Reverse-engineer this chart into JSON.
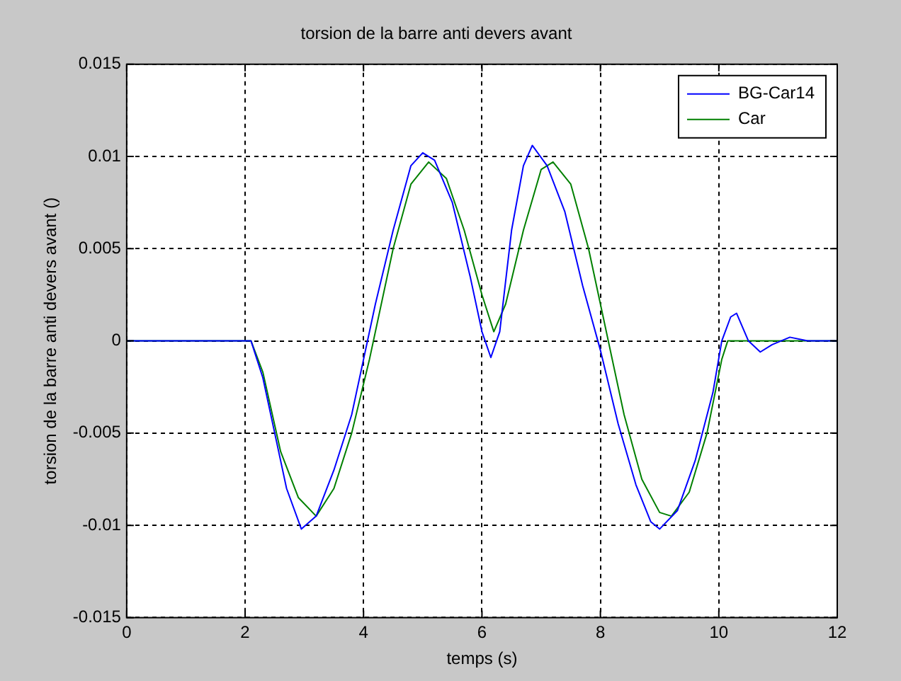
{
  "chart_data": {
    "type": "line",
    "title": "torsion de la barre anti devers avant",
    "xlabel": "temps (s)",
    "ylabel": "torsion de la barre anti devers avant ()",
    "xlim": [
      0,
      12
    ],
    "xticks": [
      0,
      2,
      4,
      6,
      8,
      10,
      12
    ],
    "ylim": [
      -0.015,
      0.015
    ],
    "yticks": [
      -0.015,
      -0.01,
      -0.005,
      0,
      0.005,
      0.01,
      0.015
    ],
    "grid": true,
    "legend": "top right",
    "line_style": "solid",
    "marker": "none",
    "series": [
      {
        "name": "BG-Car14",
        "color": "#0000ff",
        "x": [
          0,
          2,
          2.1,
          2.3,
          2.5,
          2.7,
          2.95,
          3.2,
          3.5,
          3.8,
          4.0,
          4.2,
          4.5,
          4.8,
          5.0,
          5.2,
          5.5,
          5.8,
          6.0,
          6.15,
          6.3,
          6.5,
          6.7,
          6.85,
          7.1,
          7.4,
          7.7,
          8.0,
          8.3,
          8.6,
          8.85,
          9.0,
          9.3,
          9.6,
          9.9,
          10.05,
          10.2,
          10.3,
          10.5,
          10.7,
          10.9,
          11.2,
          11.5,
          12
        ],
        "values": [
          0,
          0,
          0,
          -0.002,
          -0.005,
          -0.008,
          -0.0102,
          -0.0095,
          -0.007,
          -0.004,
          -0.001,
          0.002,
          0.006,
          0.0095,
          0.0102,
          0.0098,
          0.0075,
          0.0035,
          0.0005,
          -0.0009,
          0.0005,
          0.006,
          0.0095,
          0.0106,
          0.0095,
          0.007,
          0.003,
          -0.0005,
          -0.0045,
          -0.0078,
          -0.0098,
          -0.0102,
          -0.0092,
          -0.0065,
          -0.0028,
          0,
          0.0013,
          0.0015,
          0,
          -0.0006,
          -0.0002,
          0.0002,
          0,
          0
        ]
      },
      {
        "name": "Car",
        "color": "#008000",
        "x": [
          0,
          2.1,
          2.3,
          2.6,
          2.9,
          3.2,
          3.5,
          3.8,
          4.1,
          4.5,
          4.8,
          5.1,
          5.4,
          5.7,
          6.0,
          6.2,
          6.4,
          6.7,
          7.0,
          7.2,
          7.5,
          7.8,
          8.1,
          8.4,
          8.7,
          9.0,
          9.2,
          9.5,
          9.8,
          10.05,
          10.15,
          12
        ],
        "values": [
          0,
          0,
          -0.0017,
          -0.006,
          -0.0085,
          -0.0095,
          -0.008,
          -0.005,
          -0.001,
          0.005,
          0.0085,
          0.0097,
          0.0088,
          0.006,
          0.0025,
          0.0005,
          0.002,
          0.006,
          0.0093,
          0.0097,
          0.0085,
          0.005,
          0.0005,
          -0.004,
          -0.0075,
          -0.0093,
          -0.0095,
          -0.0082,
          -0.005,
          -0.001,
          0,
          0
        ]
      }
    ]
  }
}
